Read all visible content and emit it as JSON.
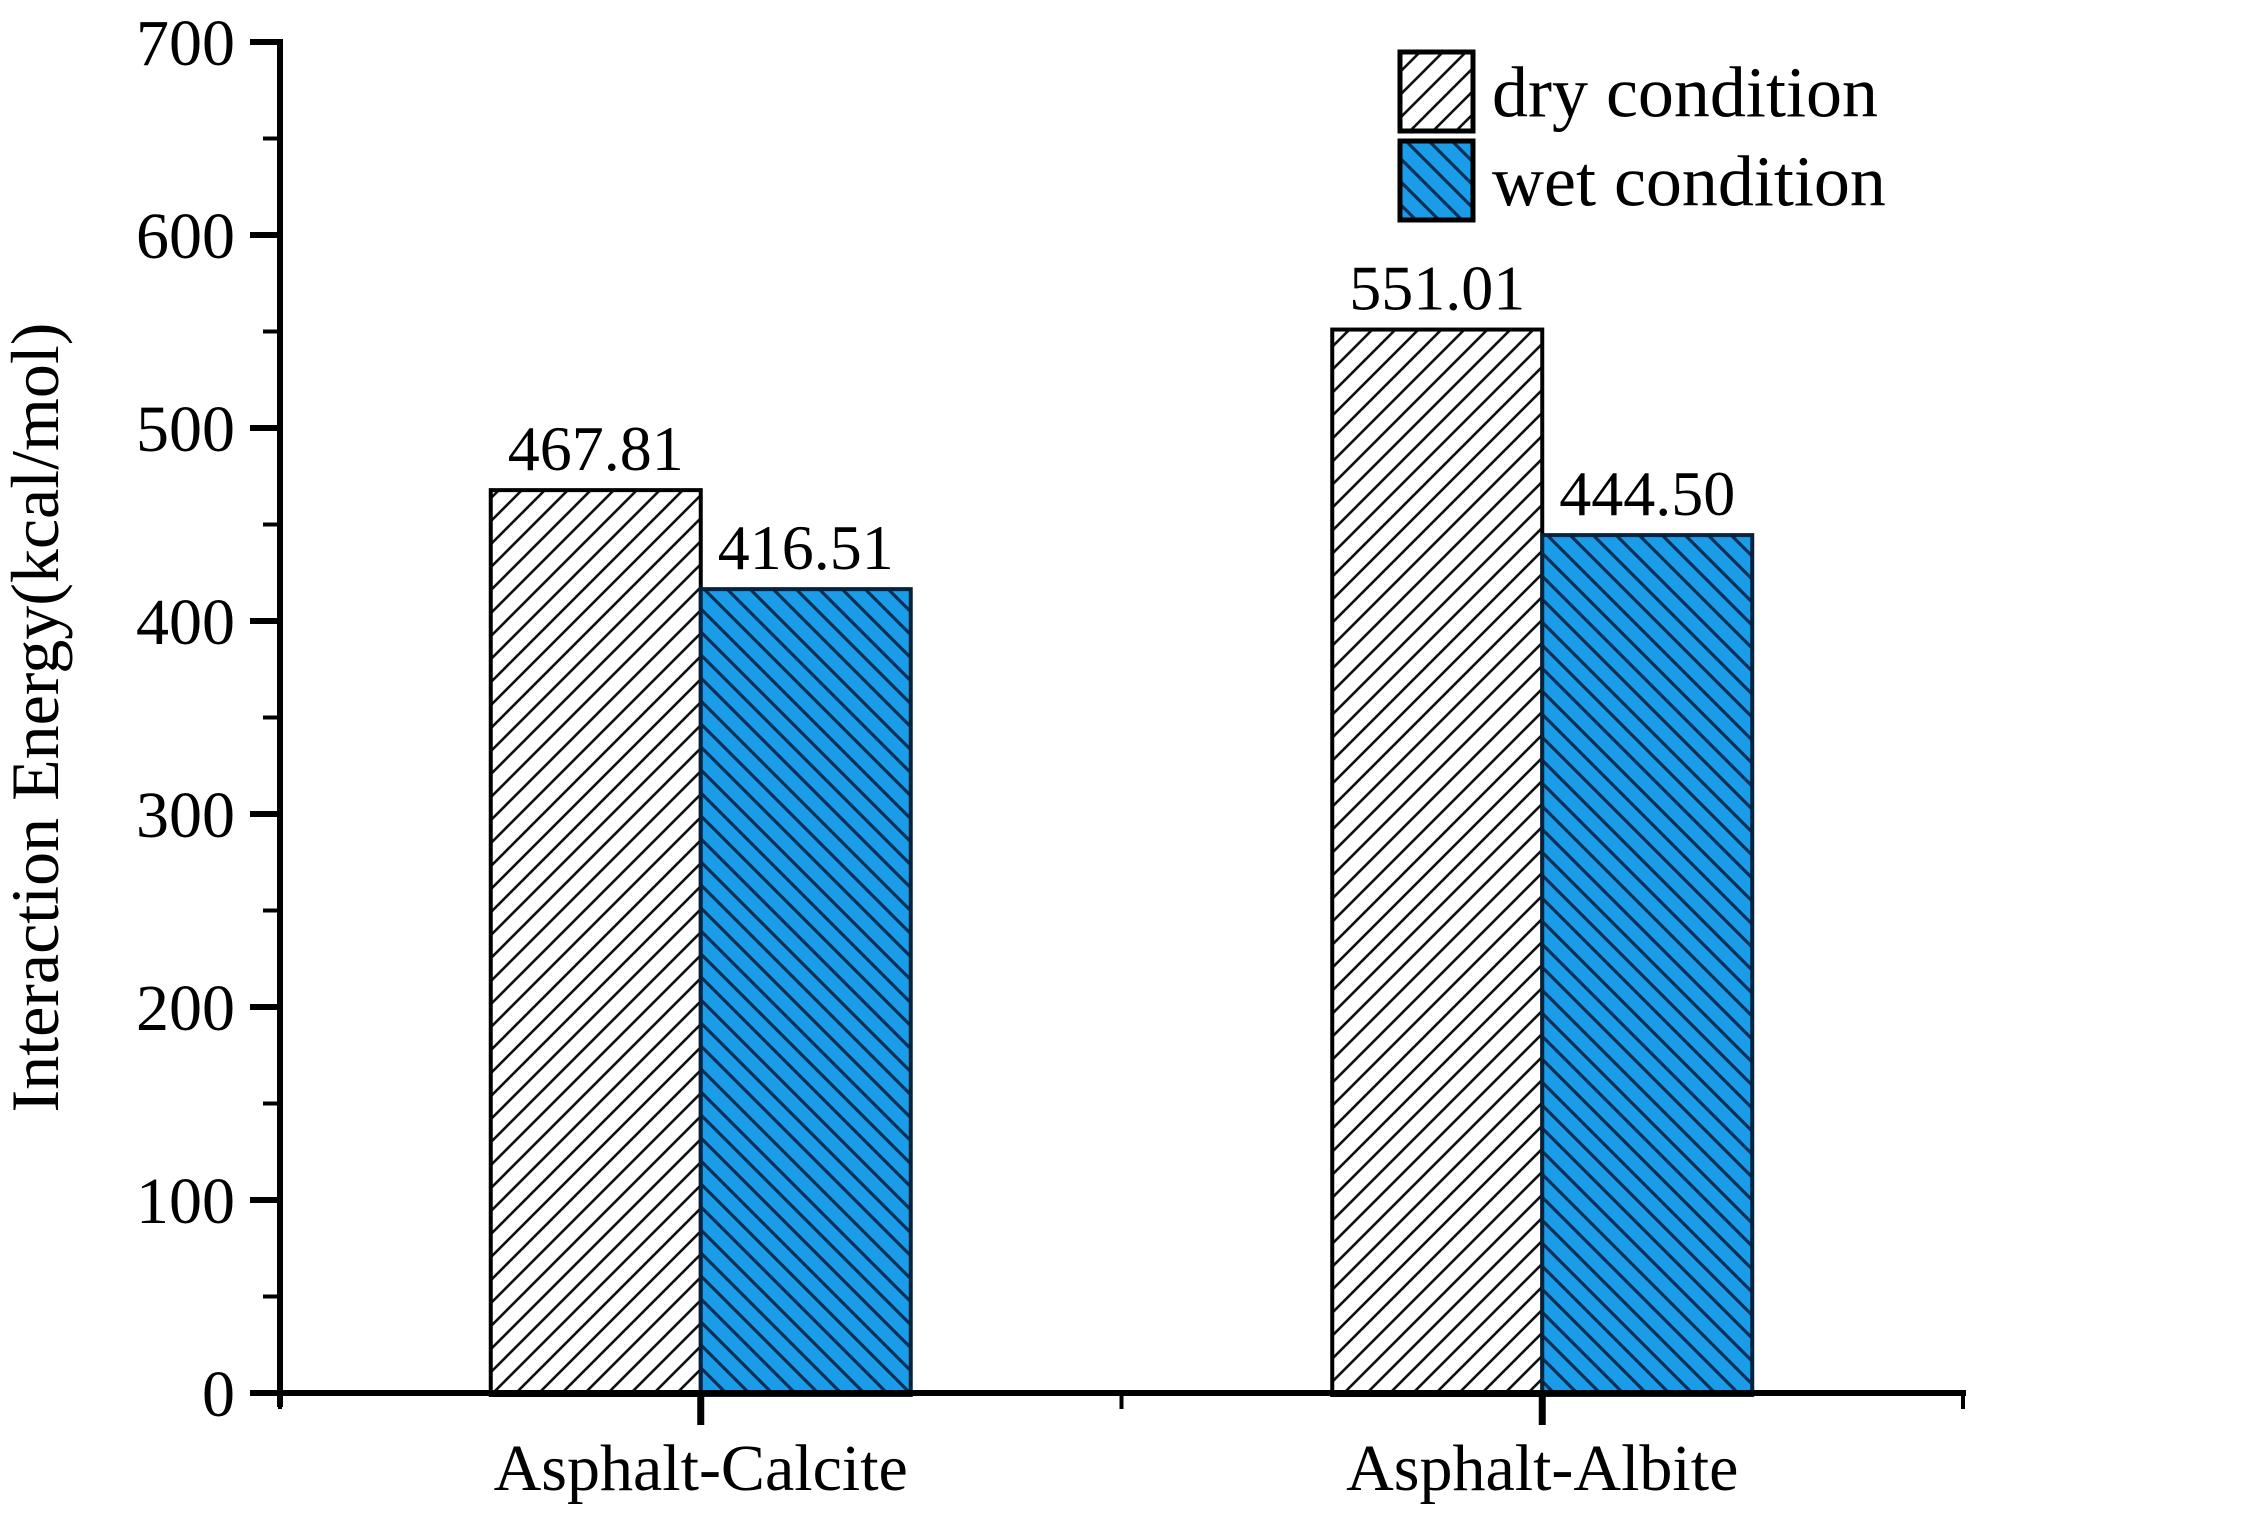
{
  "figure": {
    "background": "#ffffff",
    "axis_color": "#000000",
    "text_color": "#000000"
  },
  "chart_data": {
    "type": "bar",
    "title": "",
    "xlabel": "",
    "ylabel": "Interaction Energy(kcal/mol)",
    "categories": [
      "Asphalt-Calcite",
      "Asphalt-Albite"
    ],
    "series": [
      {
        "name": "dry condition",
        "values": [
          467.81,
          551.01
        ],
        "value_labels": [
          "467.81",
          "551.01"
        ],
        "fill": "#ffffff",
        "hatch": "forward-diagonal",
        "hatch_color": "#111111",
        "border_color": "#000000"
      },
      {
        "name": "wet condition",
        "values": [
          416.51,
          444.5
        ],
        "value_labels": [
          "416.51",
          "444.50"
        ],
        "fill": "#1b9ce8",
        "hatch": "backward-diagonal",
        "hatch_color": "#0c2f55",
        "border_color": "#05223c"
      }
    ],
    "ylim": [
      0,
      700
    ],
    "y_major_tick_step": 100,
    "y_minor_tick_step": 50,
    "y_tick_labels": [
      "0",
      "100",
      "200",
      "300",
      "400",
      "500",
      "600",
      "700"
    ],
    "grid": false,
    "legend": {
      "position": "top-right",
      "entries": [
        "dry condition",
        "wet condition"
      ]
    }
  }
}
